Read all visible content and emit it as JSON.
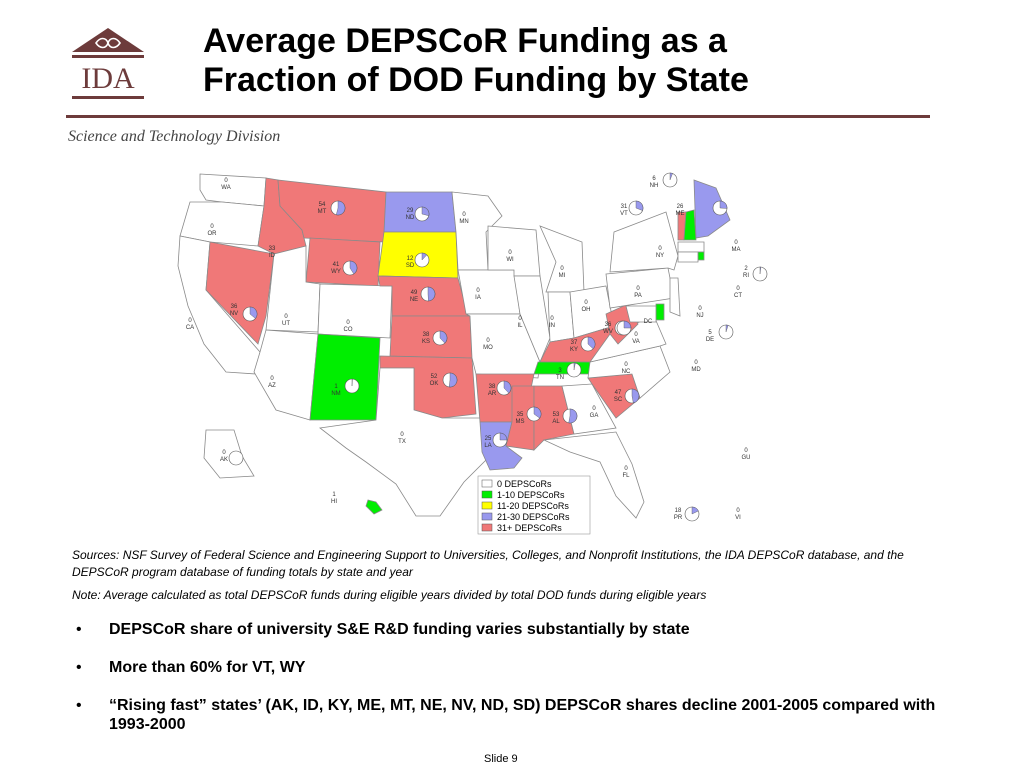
{
  "logo": {
    "text": "IDA"
  },
  "title": {
    "line1": "Average DEPSCoR Funding as a",
    "line2": "Fraction of DOD Funding by State"
  },
  "division": "Science and Technology Division",
  "colors": {
    "zero": "#ffffff",
    "c1_10": "#00ee00",
    "c11_20": "#ffff00",
    "c21_30": "#9999ee",
    "c31_plus": "#f07878",
    "brand": "#6d3b3b"
  },
  "map": {
    "legend": [
      {
        "label": "0 DEPSCoRs",
        "color": "#ffffff"
      },
      {
        "label": "1-10 DEPSCoRs",
        "color": "#00ee00"
      },
      {
        "label": "11-20 DEPSCoRs",
        "color": "#ffff00"
      },
      {
        "label": "21-30 DEPSCoRs",
        "color": "#9999ee"
      },
      {
        "label": "31+ DEPSCoRs",
        "color": "#f07878"
      }
    ],
    "states": [
      {
        "abbr": "WA",
        "value": "0",
        "pie": false
      },
      {
        "abbr": "OR",
        "value": "0",
        "pie": false
      },
      {
        "abbr": "CA",
        "value": "0",
        "pie": false
      },
      {
        "abbr": "ID",
        "value": "33",
        "pie": false
      },
      {
        "abbr": "NV",
        "value": "36",
        "pie": true
      },
      {
        "abbr": "MT",
        "value": "54",
        "pie": true
      },
      {
        "abbr": "WY",
        "value": "41",
        "pie": true
      },
      {
        "abbr": "UT",
        "value": "0",
        "pie": false
      },
      {
        "abbr": "CO",
        "value": "0",
        "pie": false
      },
      {
        "abbr": "AZ",
        "value": "0",
        "pie": false
      },
      {
        "abbr": "NM",
        "value": "1",
        "pie": true
      },
      {
        "abbr": "ND",
        "value": "29",
        "pie": true
      },
      {
        "abbr": "SD",
        "value": "12",
        "pie": true
      },
      {
        "abbr": "NE",
        "value": "49",
        "pie": true
      },
      {
        "abbr": "KS",
        "value": "38",
        "pie": true
      },
      {
        "abbr": "OK",
        "value": "52",
        "pie": true
      },
      {
        "abbr": "TX",
        "value": "0",
        "pie": false
      },
      {
        "abbr": "MN",
        "value": "0",
        "pie": false
      },
      {
        "abbr": "IA",
        "value": "0",
        "pie": false
      },
      {
        "abbr": "MO",
        "value": "0",
        "pie": false
      },
      {
        "abbr": "AR",
        "value": "38",
        "pie": true
      },
      {
        "abbr": "LA",
        "value": "25",
        "pie": true
      },
      {
        "abbr": "WI",
        "value": "0",
        "pie": false
      },
      {
        "abbr": "IL",
        "value": "0",
        "pie": false
      },
      {
        "abbr": "MI",
        "value": "0",
        "pie": false
      },
      {
        "abbr": "IN",
        "value": "0",
        "pie": false
      },
      {
        "abbr": "OH",
        "value": "0",
        "pie": false
      },
      {
        "abbr": "KY",
        "value": "37",
        "pie": true
      },
      {
        "abbr": "TN",
        "value": "3",
        "pie": true
      },
      {
        "abbr": "MS",
        "value": "35",
        "pie": true
      },
      {
        "abbr": "AL",
        "value": "53",
        "pie": true
      },
      {
        "abbr": "GA",
        "value": "0",
        "pie": false
      },
      {
        "abbr": "FL",
        "value": "0",
        "pie": false
      },
      {
        "abbr": "SC",
        "value": "47",
        "pie": true
      },
      {
        "abbr": "NC",
        "value": "0",
        "pie": false
      },
      {
        "abbr": "VA",
        "value": "0",
        "pie": false
      },
      {
        "abbr": "WV",
        "value": "36",
        "pie": true
      },
      {
        "abbr": "PA",
        "value": "0",
        "pie": false
      },
      {
        "abbr": "NY",
        "value": "0",
        "pie": false
      },
      {
        "abbr": "VT",
        "value": "31",
        "pie": true
      },
      {
        "abbr": "NH",
        "value": "6",
        "pie": true
      },
      {
        "abbr": "ME",
        "value": "26",
        "pie": true
      },
      {
        "abbr": "MA",
        "value": "0",
        "pie": false
      },
      {
        "abbr": "RI",
        "value": "2",
        "pie": true
      },
      {
        "abbr": "CT",
        "value": "0",
        "pie": false
      },
      {
        "abbr": "NJ",
        "value": "0",
        "pie": false
      },
      {
        "abbr": "DE",
        "value": "5",
        "pie": true
      },
      {
        "abbr": "MD",
        "value": "0",
        "pie": false
      },
      {
        "abbr": "DC",
        "value": "",
        "pie": true
      },
      {
        "abbr": "AK",
        "value": "0",
        "pie": true
      },
      {
        "abbr": "HI",
        "value": "1",
        "pie": false
      },
      {
        "abbr": "PR",
        "value": "18",
        "pie": true
      },
      {
        "abbr": "VI",
        "value": "0",
        "pie": false
      },
      {
        "abbr": "GU",
        "value": "0",
        "pie": false
      }
    ]
  },
  "sources": {
    "sources_text": "Sources: NSF Survey of Federal Science and Engineering Support to Universities, Colleges, and Nonprofit Institutions, the IDA DEPSCoR database, and the DEPSCoR program database of funding totals by state and year",
    "note_text": "Note: Average calculated as total DEPSCoR funds during eligible years divided by total DOD funds during eligible years"
  },
  "bullets": [
    "DEPSCoR share of university S&E R&D funding varies substantially by state",
    "More than 60% for VT, WY",
    "“Rising fast” states’ (AK, ID, KY, ME, MT, NE, NV, ND, SD) DEPSCoR shares decline 2001-2005 compared with 1993-2000"
  ],
  "bullet_marker": "•",
  "footer": {
    "slide_label": "Slide 9"
  }
}
